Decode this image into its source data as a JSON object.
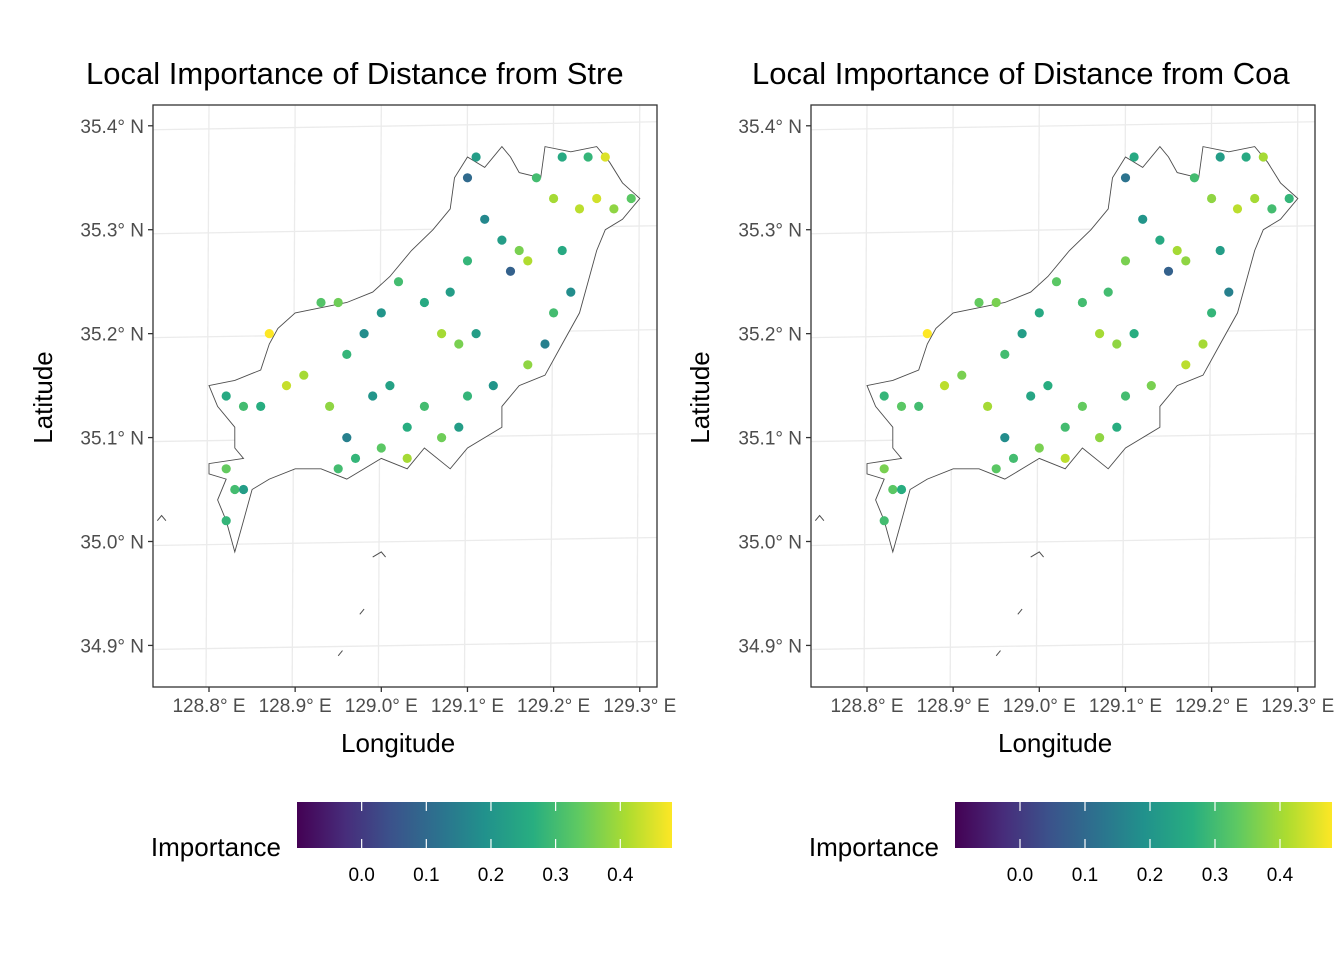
{
  "chart_data": [
    {
      "type": "scatter",
      "title": "Local Importance of Distance from Stre",
      "xlabel": "Longitude",
      "ylabel": "Latitude",
      "x_ticks": [
        "128.8° E",
        "128.9° E",
        "129.0° E",
        "129.1° E",
        "129.2° E",
        "129.3° E"
      ],
      "y_ticks": [
        "34.9° N",
        "35.0° N",
        "35.1° N",
        "35.2° N",
        "35.3° N",
        "35.4° N"
      ],
      "xlim": [
        128.735,
        129.32
      ],
      "ylim": [
        34.86,
        35.42
      ],
      "grid": true,
      "color_scale": "viridis",
      "legend": {
        "title": "Importance",
        "ticks": [
          "0.0",
          "0.1",
          "0.2",
          "0.3",
          "0.4"
        ],
        "range": [
          -0.1,
          0.48
        ],
        "placement": "bottom"
      },
      "points": [
        {
          "lon": 129.26,
          "lat": 35.37,
          "v": 0.45
        },
        {
          "lon": 129.24,
          "lat": 35.37,
          "v": 0.28
        },
        {
          "lon": 129.21,
          "lat": 35.37,
          "v": 0.25
        },
        {
          "lon": 129.25,
          "lat": 35.33,
          "v": 0.44
        },
        {
          "lon": 129.23,
          "lat": 35.32,
          "v": 0.42
        },
        {
          "lon": 129.27,
          "lat": 35.32,
          "v": 0.38
        },
        {
          "lon": 129.29,
          "lat": 35.33,
          "v": 0.33
        },
        {
          "lon": 129.2,
          "lat": 35.33,
          "v": 0.4
        },
        {
          "lon": 129.18,
          "lat": 35.35,
          "v": 0.3
        },
        {
          "lon": 129.14,
          "lat": 35.29,
          "v": 0.22
        },
        {
          "lon": 129.16,
          "lat": 35.28,
          "v": 0.36
        },
        {
          "lon": 129.17,
          "lat": 35.27,
          "v": 0.41
        },
        {
          "lon": 129.15,
          "lat": 35.26,
          "v": 0.08
        },
        {
          "lon": 129.21,
          "lat": 35.28,
          "v": 0.25
        },
        {
          "lon": 129.22,
          "lat": 35.24,
          "v": 0.18
        },
        {
          "lon": 129.2,
          "lat": 35.22,
          "v": 0.3
        },
        {
          "lon": 129.19,
          "lat": 35.19,
          "v": 0.15
        },
        {
          "lon": 129.17,
          "lat": 35.17,
          "v": 0.38
        },
        {
          "lon": 129.12,
          "lat": 35.31,
          "v": 0.17
        },
        {
          "lon": 129.1,
          "lat": 35.27,
          "v": 0.28
        },
        {
          "lon": 129.08,
          "lat": 35.24,
          "v": 0.22
        },
        {
          "lon": 129.07,
          "lat": 35.2,
          "v": 0.4
        },
        {
          "lon": 129.09,
          "lat": 35.19,
          "v": 0.36
        },
        {
          "lon": 129.11,
          "lat": 35.2,
          "v": 0.22
        },
        {
          "lon": 129.05,
          "lat": 35.23,
          "v": 0.25
        },
        {
          "lon": 129.02,
          "lat": 35.25,
          "v": 0.3
        },
        {
          "lon": 129.0,
          "lat": 35.22,
          "v": 0.2
        },
        {
          "lon": 128.98,
          "lat": 35.2,
          "v": 0.18
        },
        {
          "lon": 128.96,
          "lat": 35.18,
          "v": 0.28
        },
        {
          "lon": 128.95,
          "lat": 35.23,
          "v": 0.35
        },
        {
          "lon": 128.93,
          "lat": 35.23,
          "v": 0.32
        },
        {
          "lon": 128.87,
          "lat": 35.2,
          "v": 0.48
        },
        {
          "lon": 128.89,
          "lat": 35.15,
          "v": 0.43
        },
        {
          "lon": 128.91,
          "lat": 35.16,
          "v": 0.4
        },
        {
          "lon": 128.94,
          "lat": 35.13,
          "v": 0.38
        },
        {
          "lon": 128.96,
          "lat": 35.1,
          "v": 0.15
        },
        {
          "lon": 128.95,
          "lat": 35.07,
          "v": 0.3
        },
        {
          "lon": 128.97,
          "lat": 35.08,
          "v": 0.28
        },
        {
          "lon": 128.99,
          "lat": 35.14,
          "v": 0.2
        },
        {
          "lon": 129.01,
          "lat": 35.15,
          "v": 0.23
        },
        {
          "lon": 129.03,
          "lat": 35.11,
          "v": 0.26
        },
        {
          "lon": 129.05,
          "lat": 35.13,
          "v": 0.3
        },
        {
          "lon": 129.07,
          "lat": 35.1,
          "v": 0.35
        },
        {
          "lon": 129.09,
          "lat": 35.11,
          "v": 0.22
        },
        {
          "lon": 129.1,
          "lat": 35.14,
          "v": 0.28
        },
        {
          "lon": 129.13,
          "lat": 35.15,
          "v": 0.2
        },
        {
          "lon": 128.82,
          "lat": 35.14,
          "v": 0.25
        },
        {
          "lon": 128.84,
          "lat": 35.13,
          "v": 0.3
        },
        {
          "lon": 128.86,
          "lat": 35.13,
          "v": 0.26
        },
        {
          "lon": 128.82,
          "lat": 35.07,
          "v": 0.34
        },
        {
          "lon": 128.83,
          "lat": 35.05,
          "v": 0.3
        },
        {
          "lon": 128.84,
          "lat": 35.05,
          "v": 0.22
        },
        {
          "lon": 128.82,
          "lat": 35.02,
          "v": 0.28
        },
        {
          "lon": 129.03,
          "lat": 35.08,
          "v": 0.4
        },
        {
          "lon": 129.0,
          "lat": 35.09,
          "v": 0.33
        },
        {
          "lon": 129.11,
          "lat": 35.37,
          "v": 0.22
        },
        {
          "lon": 129.1,
          "lat": 35.35,
          "v": 0.1
        }
      ]
    },
    {
      "type": "scatter",
      "title": "Local Importance of Distance from Coa",
      "xlabel": "Longitude",
      "ylabel": "Latitude",
      "x_ticks": [
        "128.8° E",
        "128.9° E",
        "129.0° E",
        "129.1° E",
        "129.2° E",
        "129.3° E"
      ],
      "y_ticks": [
        "34.9° N",
        "35.0° N",
        "35.1° N",
        "35.2° N",
        "35.3° N",
        "35.4° N"
      ],
      "xlim": [
        128.735,
        129.32
      ],
      "ylim": [
        34.86,
        35.42
      ],
      "grid": true,
      "color_scale": "viridis",
      "legend": {
        "title": "Importance",
        "ticks": [
          "0.0",
          "0.1",
          "0.2",
          "0.3",
          "0.4"
        ],
        "range": [
          -0.1,
          0.48
        ],
        "placement": "bottom"
      },
      "points": [
        {
          "lon": 129.26,
          "lat": 35.37,
          "v": 0.4
        },
        {
          "lon": 129.24,
          "lat": 35.37,
          "v": 0.25
        },
        {
          "lon": 129.21,
          "lat": 35.37,
          "v": 0.22
        },
        {
          "lon": 129.25,
          "lat": 35.33,
          "v": 0.4
        },
        {
          "lon": 129.23,
          "lat": 35.32,
          "v": 0.42
        },
        {
          "lon": 129.27,
          "lat": 35.32,
          "v": 0.3
        },
        {
          "lon": 129.29,
          "lat": 35.33,
          "v": 0.28
        },
        {
          "lon": 129.2,
          "lat": 35.33,
          "v": 0.38
        },
        {
          "lon": 129.18,
          "lat": 35.35,
          "v": 0.3
        },
        {
          "lon": 129.14,
          "lat": 35.29,
          "v": 0.25
        },
        {
          "lon": 129.16,
          "lat": 35.28,
          "v": 0.4
        },
        {
          "lon": 129.17,
          "lat": 35.27,
          "v": 0.38
        },
        {
          "lon": 129.15,
          "lat": 35.26,
          "v": 0.08
        },
        {
          "lon": 129.21,
          "lat": 35.28,
          "v": 0.22
        },
        {
          "lon": 129.22,
          "lat": 35.24,
          "v": 0.15
        },
        {
          "lon": 129.2,
          "lat": 35.22,
          "v": 0.28
        },
        {
          "lon": 129.19,
          "lat": 35.19,
          "v": 0.4
        },
        {
          "lon": 129.17,
          "lat": 35.17,
          "v": 0.42
        },
        {
          "lon": 129.12,
          "lat": 35.31,
          "v": 0.2
        },
        {
          "lon": 129.1,
          "lat": 35.27,
          "v": 0.36
        },
        {
          "lon": 129.08,
          "lat": 35.24,
          "v": 0.3
        },
        {
          "lon": 129.07,
          "lat": 35.2,
          "v": 0.4
        },
        {
          "lon": 129.09,
          "lat": 35.19,
          "v": 0.38
        },
        {
          "lon": 129.11,
          "lat": 35.2,
          "v": 0.26
        },
        {
          "lon": 129.05,
          "lat": 35.23,
          "v": 0.3
        },
        {
          "lon": 129.02,
          "lat": 35.25,
          "v": 0.33
        },
        {
          "lon": 129.0,
          "lat": 35.22,
          "v": 0.25
        },
        {
          "lon": 128.98,
          "lat": 35.2,
          "v": 0.22
        },
        {
          "lon": 128.96,
          "lat": 35.18,
          "v": 0.3
        },
        {
          "lon": 128.95,
          "lat": 35.23,
          "v": 0.36
        },
        {
          "lon": 128.93,
          "lat": 35.23,
          "v": 0.34
        },
        {
          "lon": 128.87,
          "lat": 35.2,
          "v": 0.48
        },
        {
          "lon": 128.89,
          "lat": 35.15,
          "v": 0.42
        },
        {
          "lon": 128.91,
          "lat": 35.16,
          "v": 0.36
        },
        {
          "lon": 128.94,
          "lat": 35.13,
          "v": 0.4
        },
        {
          "lon": 128.96,
          "lat": 35.1,
          "v": 0.18
        },
        {
          "lon": 128.95,
          "lat": 35.07,
          "v": 0.33
        },
        {
          "lon": 128.97,
          "lat": 35.08,
          "v": 0.3
        },
        {
          "lon": 128.99,
          "lat": 35.14,
          "v": 0.24
        },
        {
          "lon": 129.01,
          "lat": 35.15,
          "v": 0.26
        },
        {
          "lon": 129.03,
          "lat": 35.11,
          "v": 0.3
        },
        {
          "lon": 129.05,
          "lat": 35.13,
          "v": 0.34
        },
        {
          "lon": 129.07,
          "lat": 35.1,
          "v": 0.38
        },
        {
          "lon": 129.09,
          "lat": 35.11,
          "v": 0.26
        },
        {
          "lon": 129.1,
          "lat": 35.14,
          "v": 0.3
        },
        {
          "lon": 129.13,
          "lat": 35.15,
          "v": 0.36
        },
        {
          "lon": 128.82,
          "lat": 35.14,
          "v": 0.28
        },
        {
          "lon": 128.84,
          "lat": 35.13,
          "v": 0.33
        },
        {
          "lon": 128.86,
          "lat": 35.13,
          "v": 0.3
        },
        {
          "lon": 128.82,
          "lat": 35.07,
          "v": 0.36
        },
        {
          "lon": 128.83,
          "lat": 35.05,
          "v": 0.33
        },
        {
          "lon": 128.84,
          "lat": 35.05,
          "v": 0.26
        },
        {
          "lon": 128.82,
          "lat": 35.02,
          "v": 0.3
        },
        {
          "lon": 129.03,
          "lat": 35.08,
          "v": 0.42
        },
        {
          "lon": 129.0,
          "lat": 35.09,
          "v": 0.36
        },
        {
          "lon": 129.11,
          "lat": 35.37,
          "v": 0.25
        },
        {
          "lon": 129.1,
          "lat": 35.35,
          "v": 0.12
        }
      ]
    }
  ]
}
